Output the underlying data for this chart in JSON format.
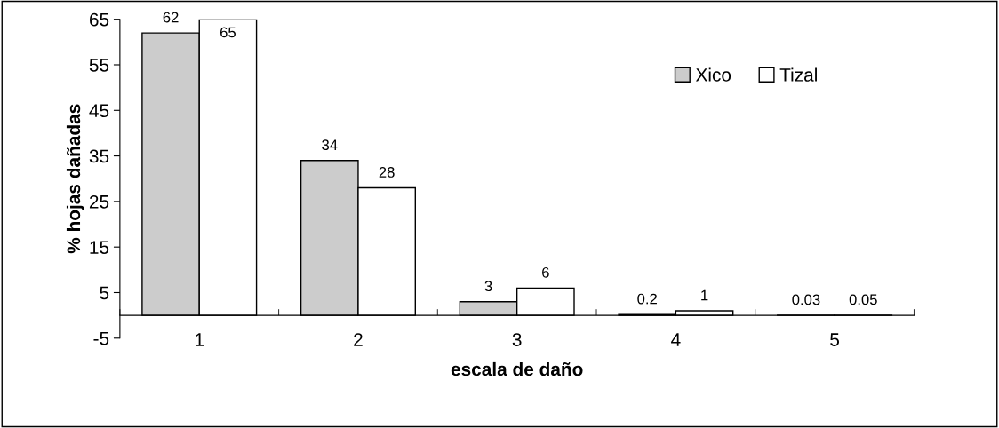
{
  "chart_data": {
    "type": "bar",
    "xlabel": "escala de daño",
    "ylabel": "% hojas dañadas",
    "categories": [
      "1",
      "2",
      "3",
      "4",
      "5"
    ],
    "series": [
      {
        "name": "Xico",
        "color": "#cccccc",
        "values": [
          62,
          34,
          3,
          0.2,
          0.03
        ]
      },
      {
        "name": "Tizal",
        "color": "#ffffff",
        "values": [
          65,
          28,
          6,
          1,
          0.05
        ]
      }
    ],
    "ylim": [
      -5,
      65
    ],
    "yticks": [
      -5,
      5,
      15,
      25,
      35,
      45,
      55,
      65
    ],
    "data_labels": true,
    "legend": "top right",
    "grid": false
  }
}
